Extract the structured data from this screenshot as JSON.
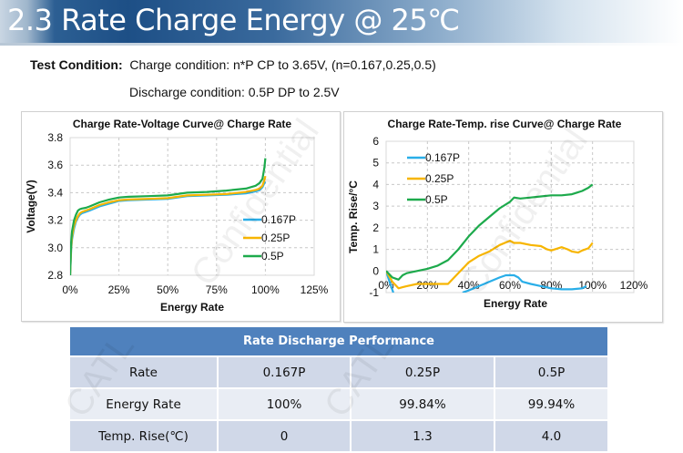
{
  "header": {
    "title": "2.3 Rate Charge Energy @ 25℃"
  },
  "conditions": {
    "label": "Test Condition:",
    "charge": "Charge condition: n*P CP to 3.65V, (n=0.167,0.25,0.5)",
    "discharge": "Discharge condition: 0.5P DP to 2.5V"
  },
  "watermarks": [
    "Confidential",
    "Confidential",
    "CATL",
    "CATL"
  ],
  "colors": {
    "s0167": "#29aee8",
    "s025": "#f7b500",
    "s05": "#1daa4c",
    "table_header": "#4f81bd"
  },
  "chart_data": [
    {
      "type": "line",
      "title": "Charge Rate-Voltage Curve@ Charge Rate",
      "xlabel": "Energy Rate",
      "ylabel": "Voltage(V)",
      "xlim": [
        0,
        125
      ],
      "ylim": [
        2.8,
        3.8
      ],
      "xticks": [
        0,
        25,
        50,
        75,
        100,
        125
      ],
      "xtick_labels": [
        "0%",
        "25%",
        "50%",
        "75%",
        "100%",
        "125%"
      ],
      "yticks": [
        2.8,
        3.0,
        3.2,
        3.4,
        3.6,
        3.8
      ],
      "ytick_labels": [
        "2.8",
        "3.0",
        "3.2",
        "3.4",
        "3.6",
        "3.8"
      ],
      "grid": true,
      "legend": "right-middle",
      "series": [
        {
          "name": "0.167P",
          "color": "#29aee8",
          "x": [
            0,
            0.5,
            1,
            2,
            3,
            4,
            5,
            6,
            8,
            10,
            15,
            20,
            25,
            30,
            40,
            50,
            55,
            60,
            70,
            80,
            90,
            95,
            97,
            98.5,
            99.5,
            100
          ],
          "y": [
            2.8,
            2.98,
            3.06,
            3.14,
            3.19,
            3.22,
            3.24,
            3.25,
            3.26,
            3.27,
            3.3,
            3.32,
            3.34,
            3.345,
            3.35,
            3.355,
            3.365,
            3.375,
            3.38,
            3.385,
            3.395,
            3.41,
            3.42,
            3.44,
            3.47,
            3.48
          ]
        },
        {
          "name": "0.25P",
          "color": "#f7b500",
          "x": [
            0,
            0.5,
            1,
            2,
            3,
            4,
            5,
            6,
            8,
            10,
            15,
            20,
            25,
            30,
            40,
            50,
            55,
            60,
            70,
            80,
            90,
            95,
            97,
            98.5,
            99.5,
            100
          ],
          "y": [
            2.8,
            3.0,
            3.08,
            3.16,
            3.2,
            3.23,
            3.25,
            3.26,
            3.27,
            3.28,
            3.31,
            3.33,
            3.345,
            3.35,
            3.355,
            3.36,
            3.37,
            3.38,
            3.385,
            3.39,
            3.405,
            3.42,
            3.43,
            3.45,
            3.49,
            3.52
          ]
        },
        {
          "name": "0.5P",
          "color": "#1daa4c",
          "x": [
            0,
            0.5,
            1,
            2,
            3,
            4,
            5,
            6,
            8,
            10,
            15,
            20,
            25,
            30,
            40,
            50,
            55,
            60,
            70,
            80,
            90,
            95,
            97,
            98.5,
            99.5,
            100
          ],
          "y": [
            2.8,
            3.04,
            3.12,
            3.2,
            3.24,
            3.27,
            3.28,
            3.285,
            3.29,
            3.3,
            3.33,
            3.35,
            3.365,
            3.37,
            3.375,
            3.38,
            3.39,
            3.4,
            3.405,
            3.415,
            3.43,
            3.45,
            3.47,
            3.5,
            3.58,
            3.65
          ]
        }
      ]
    },
    {
      "type": "line",
      "title": "Charge Rate-Temp. rise Curve@ Charge Rate",
      "xlabel": "Energy Rate",
      "ylabel": "Temp. Rise/°C",
      "xlim": [
        0,
        120
      ],
      "ylim": [
        -1,
        6
      ],
      "xticks": [
        0,
        20,
        40,
        60,
        80,
        100,
        120
      ],
      "xtick_labels": [
        "0%",
        "20%",
        "40%",
        "60%",
        "80%",
        "100%",
        "120%"
      ],
      "yticks": [
        -1,
        0,
        1,
        2,
        3,
        4,
        5,
        6
      ],
      "ytick_labels": [
        "-1",
        "0",
        "1",
        "2",
        "3",
        "4",
        "5",
        "6"
      ],
      "grid": true,
      "legend": "top-left",
      "series": [
        {
          "name": "0.167P",
          "color": "#29aee8",
          "x": [
            0,
            2,
            3.5,
            null,
            37,
            40,
            45,
            50,
            55,
            58,
            62,
            64,
            66,
            70,
            75,
            80,
            85,
            90,
            95,
            97
          ],
          "y": [
            0,
            -0.6,
            -1.0,
            null,
            -1.0,
            -0.9,
            -0.7,
            -0.5,
            -0.3,
            -0.2,
            -0.2,
            -0.3,
            -0.5,
            -0.6,
            -0.7,
            -0.8,
            -0.85,
            -0.85,
            -0.8,
            -0.7
          ]
        },
        {
          "name": "0.25P",
          "color": "#f7b500",
          "x": [
            0,
            3,
            6,
            8,
            10,
            15,
            20,
            25,
            30,
            33,
            36,
            40,
            45,
            50,
            55,
            60,
            62,
            65,
            70,
            75,
            78,
            80,
            85,
            88,
            90,
            93,
            95,
            98,
            100
          ],
          "y": [
            0,
            -0.5,
            -0.8,
            -0.75,
            -0.7,
            -0.6,
            -0.6,
            -0.6,
            -0.6,
            -0.3,
            0.0,
            0.4,
            0.7,
            0.9,
            1.2,
            1.4,
            1.3,
            1.3,
            1.2,
            1.15,
            1.0,
            0.95,
            1.1,
            1.0,
            0.9,
            0.85,
            0.95,
            1.05,
            1.3
          ]
        },
        {
          "name": "0.5P",
          "color": "#1daa4c",
          "x": [
            0,
            3,
            6,
            8,
            10,
            15,
            20,
            25,
            30,
            35,
            40,
            45,
            50,
            55,
            60,
            62,
            65,
            70,
            75,
            80,
            85,
            90,
            95,
            98,
            100
          ],
          "y": [
            0,
            -0.3,
            -0.4,
            -0.2,
            -0.1,
            0.0,
            0.1,
            0.25,
            0.5,
            1.0,
            1.6,
            2.1,
            2.5,
            2.9,
            3.2,
            3.4,
            3.35,
            3.4,
            3.45,
            3.5,
            3.5,
            3.55,
            3.7,
            3.85,
            4.0
          ]
        }
      ]
    }
  ],
  "table": {
    "title": "Rate Discharge Performance",
    "rows": [
      [
        "Rate",
        "0.167P",
        "0.25P",
        "0.5P"
      ],
      [
        "Energy Rate",
        "100%",
        "99.84%",
        "99.94%"
      ],
      [
        "Temp. Rise(℃)",
        "0",
        "1.3",
        "4.0"
      ]
    ]
  }
}
